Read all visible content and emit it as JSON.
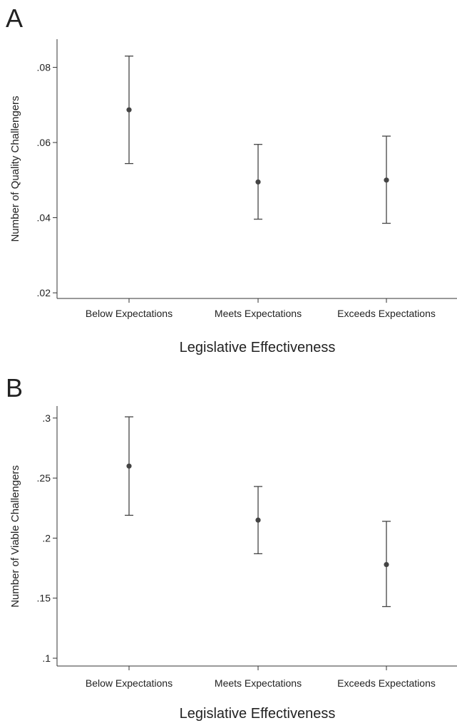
{
  "chart_data": [
    {
      "type": "scatter",
      "panel_label": "A",
      "title": "",
      "xlabel": "Legislative Effectiveness",
      "ylabel": "Number of Quality Challengers",
      "categories": [
        "Below Expectations",
        "Meets Expectations",
        "Exceeds Expectations"
      ],
      "series": [
        {
          "values": [
            0.0687,
            0.0495,
            0.05
          ],
          "ci_lower": [
            0.0544,
            0.0396,
            0.0385
          ],
          "ci_upper": [
            0.083,
            0.0595,
            0.0617
          ]
        }
      ],
      "ylim": [
        0.0185,
        0.0875
      ],
      "yticks": [
        0.02,
        0.04,
        0.06,
        0.08
      ],
      "ytick_labels": [
        ".02",
        ".04",
        ".06",
        ".08"
      ],
      "grid": false,
      "marker_color": "#444444"
    },
    {
      "type": "scatter",
      "panel_label": "B",
      "title": "",
      "xlabel": "Legislative Effectiveness",
      "ylabel": "Number of Viable Challengers",
      "categories": [
        "Below Expectations",
        "Meets Expectations",
        "Exceeds Expectations"
      ],
      "series": [
        {
          "values": [
            0.26,
            0.215,
            0.178
          ],
          "ci_lower": [
            0.219,
            0.187,
            0.143
          ],
          "ci_upper": [
            0.301,
            0.243,
            0.214
          ]
        }
      ],
      "ylim": [
        0.0935,
        0.31
      ],
      "yticks": [
        0.1,
        0.15,
        0.2,
        0.25,
        0.3
      ],
      "ytick_labels": [
        ".1",
        ".15",
        ".2",
        ".25",
        ".3"
      ],
      "grid": false,
      "marker_color": "#444444"
    }
  ]
}
